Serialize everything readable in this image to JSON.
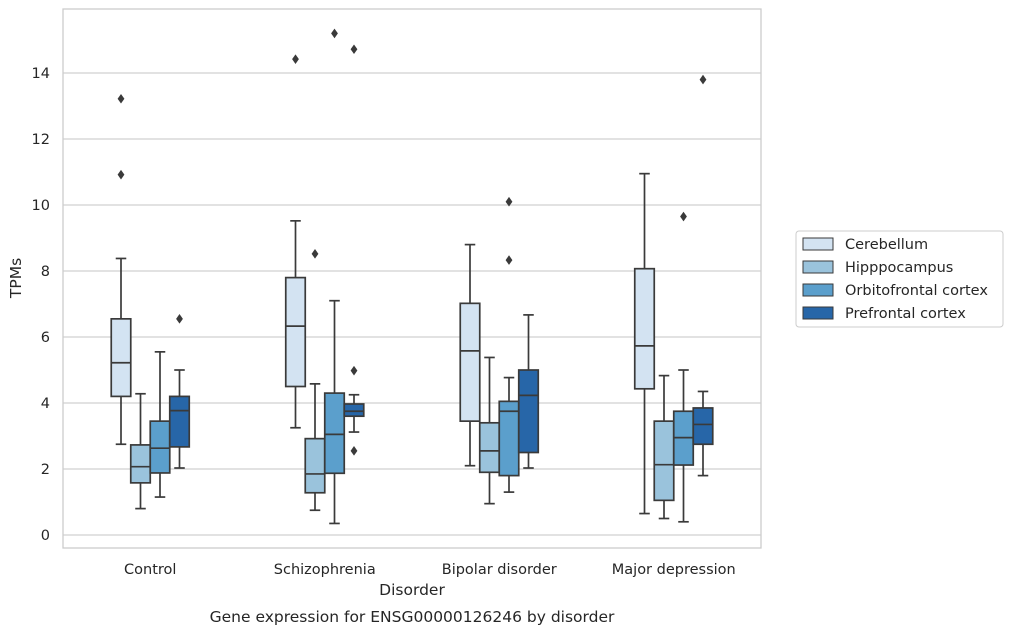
{
  "caption": "Gene expression for ENSG00000126246 by disorder",
  "chart_data": {
    "type": "boxplot",
    "xlabel": "Disorder",
    "ylabel": "TPMs",
    "ylim": [
      -0.35,
      15.9
    ],
    "yticks": [
      0,
      2,
      4,
      6,
      8,
      10,
      12,
      14
    ],
    "grid": "horizontal",
    "legend_position": "right",
    "categories": [
      "Control",
      "Schizophrenia",
      "Bipolar disorder",
      "Major depression"
    ],
    "series": [
      {
        "name": "Cerebellum",
        "color": "#d3e3f2",
        "boxes": [
          {
            "whislo": 2.75,
            "q1": 4.2,
            "med": 5.22,
            "q3": 6.55,
            "whishi": 8.38,
            "fliers": [
              10.92,
              13.22
            ]
          },
          {
            "whislo": 3.25,
            "q1": 4.5,
            "med": 6.33,
            "q3": 7.8,
            "whishi": 9.52,
            "fliers": [
              14.42
            ]
          },
          {
            "whislo": 2.1,
            "q1": 3.45,
            "med": 5.58,
            "q3": 7.02,
            "whishi": 8.8,
            "fliers": []
          },
          {
            "whislo": 0.65,
            "q1": 4.43,
            "med": 5.73,
            "q3": 8.07,
            "whishi": 10.95,
            "fliers": []
          }
        ]
      },
      {
        "name": "Hipppocampus",
        "color": "#9ac3dc",
        "boxes": [
          {
            "whislo": 0.8,
            "q1": 1.58,
            "med": 2.07,
            "q3": 2.73,
            "whishi": 4.28,
            "fliers": []
          },
          {
            "whislo": 0.75,
            "q1": 1.28,
            "med": 1.85,
            "q3": 2.92,
            "whishi": 4.58,
            "fliers": [
              8.52
            ]
          },
          {
            "whislo": 0.95,
            "q1": 1.9,
            "med": 2.55,
            "q3": 3.4,
            "whishi": 5.38,
            "fliers": []
          },
          {
            "whislo": 0.5,
            "q1": 1.05,
            "med": 2.13,
            "q3": 3.45,
            "whishi": 4.83,
            "fliers": []
          }
        ]
      },
      {
        "name": "Orbitofrontal cortex",
        "color": "#5b9fcc",
        "boxes": [
          {
            "whislo": 1.15,
            "q1": 1.88,
            "med": 2.63,
            "q3": 3.45,
            "whishi": 5.55,
            "fliers": []
          },
          {
            "whislo": 0.35,
            "q1": 1.87,
            "med": 3.05,
            "q3": 4.3,
            "whishi": 7.1,
            "fliers": [
              15.2
            ]
          },
          {
            "whislo": 1.3,
            "q1": 1.8,
            "med": 3.75,
            "q3": 4.05,
            "whishi": 4.77,
            "fliers": [
              8.33,
              10.1
            ]
          },
          {
            "whislo": 0.4,
            "q1": 2.12,
            "med": 2.95,
            "q3": 3.75,
            "whishi": 5.0,
            "fliers": [
              9.65
            ]
          }
        ]
      },
      {
        "name": "Prefrontal cortex",
        "color": "#2766a8",
        "boxes": [
          {
            "whislo": 2.03,
            "q1": 2.67,
            "med": 3.77,
            "q3": 4.2,
            "whishi": 5.0,
            "fliers": [
              6.55
            ]
          },
          {
            "whislo": 3.12,
            "q1": 3.6,
            "med": 3.75,
            "q3": 3.97,
            "whishi": 4.25,
            "fliers": [
              2.55,
              4.98,
              14.72
            ]
          },
          {
            "whislo": 2.03,
            "q1": 2.5,
            "med": 4.23,
            "q3": 5.0,
            "whishi": 6.67,
            "fliers": []
          },
          {
            "whislo": 1.8,
            "q1": 2.75,
            "med": 3.35,
            "q3": 3.85,
            "whishi": 4.35,
            "fliers": [
              13.8
            ]
          }
        ]
      }
    ]
  }
}
